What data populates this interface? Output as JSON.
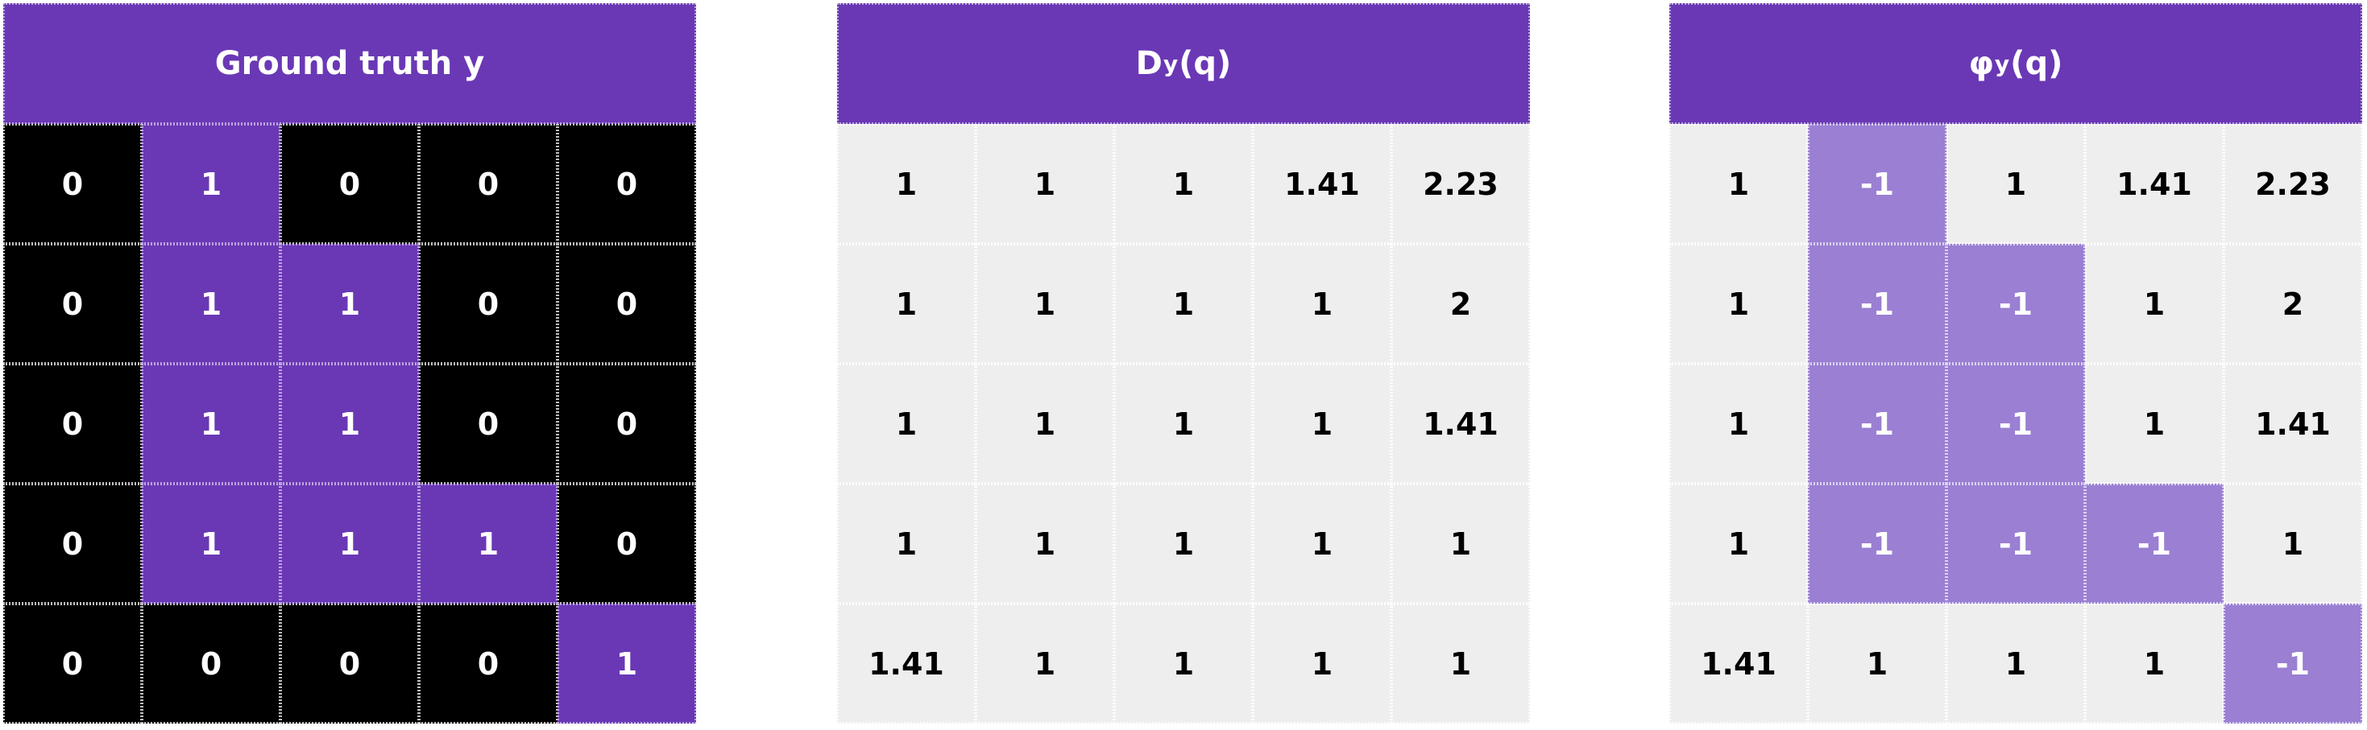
{
  "colors": {
    "header": "#6a38b5",
    "foreground": "#6a38b5",
    "background": "#000000",
    "distance_cell": "#efeeee",
    "negative_cell": "#9a7fd3"
  },
  "panels": [
    {
      "kind": "ground_truth",
      "title": "Ground truth y",
      "rows": [
        [
          "0",
          "1",
          "0",
          "0",
          "0"
        ],
        [
          "0",
          "1",
          "1",
          "0",
          "0"
        ],
        [
          "0",
          "1",
          "1",
          "0",
          "0"
        ],
        [
          "0",
          "1",
          "1",
          "1",
          "0"
        ],
        [
          "0",
          "0",
          "0",
          "0",
          "1"
        ]
      ]
    },
    {
      "kind": "distance",
      "title_main": "D",
      "title_sub": "y",
      "title_rest": "(q)",
      "rows": [
        [
          "1",
          "1",
          "1",
          "1.41",
          "2.23"
        ],
        [
          "1",
          "1",
          "1",
          "1",
          "2"
        ],
        [
          "1",
          "1",
          "1",
          "1",
          "1.41"
        ],
        [
          "1",
          "1",
          "1",
          "1",
          "1"
        ],
        [
          "1.41",
          "1",
          "1",
          "1",
          "1"
        ]
      ]
    },
    {
      "kind": "signed_distance",
      "title_main": "φ",
      "title_sub": "y",
      "title_rest": "(q)",
      "rows": [
        [
          "1",
          "-1",
          "1",
          "1.41",
          "2.23"
        ],
        [
          "1",
          "-1",
          "-1",
          "1",
          "2"
        ],
        [
          "1",
          "-1",
          "-1",
          "1",
          "1.41"
        ],
        [
          "1",
          "-1",
          "-1",
          "-1",
          "1"
        ],
        [
          "1.41",
          "1",
          "1",
          "1",
          "-1"
        ]
      ]
    }
  ]
}
